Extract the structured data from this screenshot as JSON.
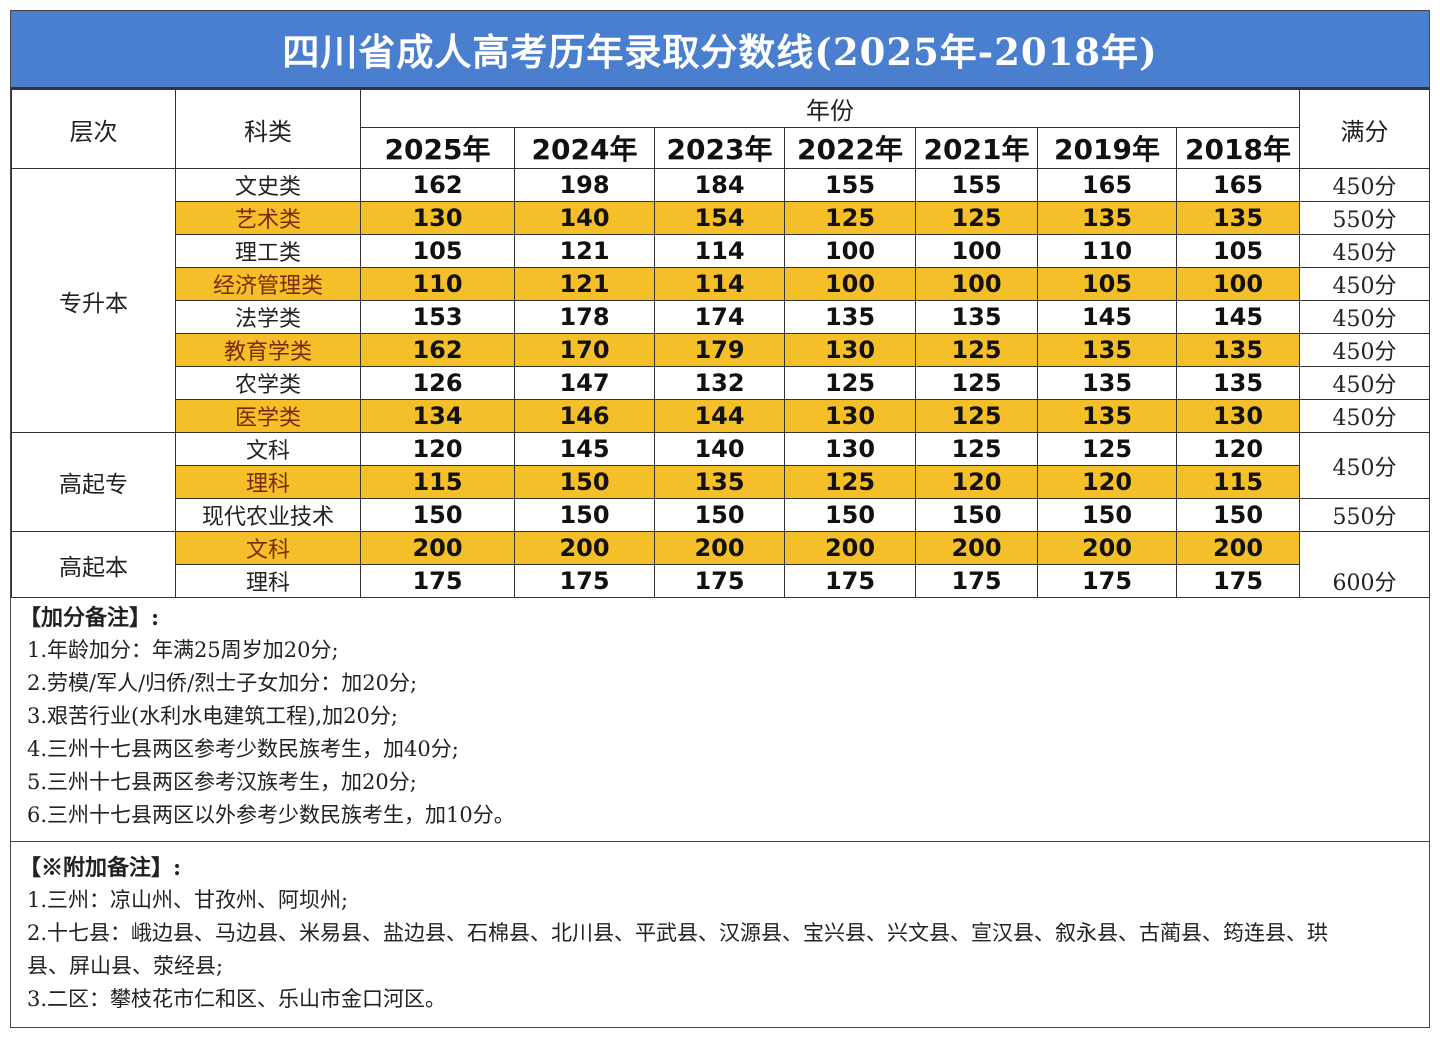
{
  "title": "四川省成人高考历年录取分数线(2025年-2018年)",
  "table": {
    "headers": {
      "level": "层次",
      "subject": "科类",
      "year_group": "年份",
      "years": [
        "2025年",
        "2024年",
        "2023年",
        "2022年",
        "2021年",
        "2019年",
        "2018年"
      ],
      "full_score": "满分"
    },
    "groups": [
      {
        "level": "专升本",
        "rows": [
          {
            "subject": "文史类",
            "scores": [
              "162",
              "198",
              "184",
              "155",
              "155",
              "165",
              "165"
            ],
            "full": "450分"
          },
          {
            "subject": "艺术类",
            "scores": [
              "130",
              "140",
              "154",
              "125",
              "125",
              "135",
              "135"
            ],
            "full": "550分"
          },
          {
            "subject": "理工类",
            "scores": [
              "105",
              "121",
              "114",
              "100",
              "100",
              "110",
              "105"
            ],
            "full": "450分"
          },
          {
            "subject": "经济管理类",
            "scores": [
              "110",
              "121",
              "114",
              "100",
              "100",
              "105",
              "100"
            ],
            "full": "450分"
          },
          {
            "subject": "法学类",
            "scores": [
              "153",
              "178",
              "174",
              "135",
              "135",
              "145",
              "145"
            ],
            "full": "450分"
          },
          {
            "subject": "教育学类",
            "scores": [
              "162",
              "170",
              "179",
              "130",
              "125",
              "135",
              "135"
            ],
            "full": "450分"
          },
          {
            "subject": "农学类",
            "scores": [
              "126",
              "147",
              "132",
              "125",
              "125",
              "135",
              "135"
            ],
            "full": "450分"
          },
          {
            "subject": "医学类",
            "scores": [
              "134",
              "146",
              "144",
              "130",
              "125",
              "135",
              "130"
            ],
            "full": "450分"
          }
        ]
      },
      {
        "level": "高起专",
        "rows": [
          {
            "subject": "文科",
            "scores": [
              "120",
              "145",
              "140",
              "130",
              "125",
              "125",
              "120"
            ]
          },
          {
            "subject": "理科",
            "scores": [
              "115",
              "150",
              "135",
              "125",
              "120",
              "120",
              "115"
            ]
          },
          {
            "subject": "现代农业技术",
            "scores": [
              "150",
              "150",
              "150",
              "150",
              "150",
              "150",
              "150"
            ],
            "full": "550分"
          }
        ],
        "merged_full": "450分"
      },
      {
        "level": "高起本",
        "rows": [
          {
            "subject": "文科",
            "scores": [
              "200",
              "200",
              "200",
              "200",
              "200",
              "200",
              "200"
            ]
          },
          {
            "subject": "理科",
            "scores": [
              "175",
              "175",
              "175",
              "175",
              "175",
              "175",
              "175"
            ],
            "full": "600分"
          }
        ]
      }
    ]
  },
  "bonus_notes": {
    "title": "【加分备注】:",
    "items": [
      "1.年龄加分：年满25周岁加20分;",
      "2.劳模/军人/归侨/烈士子女加分：加20分;",
      "3.艰苦行业(水利水电建筑工程),加20分;",
      "4.三州十七县两区参考少数民族考生，加40分;",
      "5.三州十七县两区参考汉族考生，加20分;",
      "6.三州十七县两区以外参考少数民族考生，加10分。"
    ]
  },
  "extra_notes": {
    "title": "【※附加备注】:",
    "items": [
      "1.三州：凉山州、甘孜州、阿坝州;",
      "2.十七县：峨边县、马边县、米易县、盐边县、石棉县、北川县、平武县、汉源县、宝兴县、兴文县、宣汉县、叙永县、古蔺县、筠连县、珙县、屏山县、荥经县;",
      "3.二区：攀枝花市仁和区、乐山市金口河区。"
    ]
  },
  "colors": {
    "title_bar": "#4a7fd0",
    "highlight_row": "#f5bf2a"
  }
}
